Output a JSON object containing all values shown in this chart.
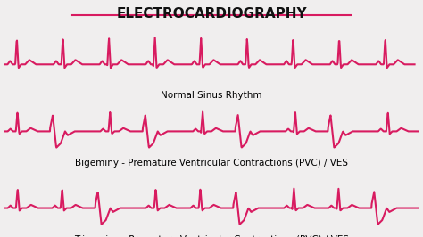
{
  "title": "ELECTROCARDIOGRAPHY",
  "title_color": "#111111",
  "bg_color": "#f0eeee",
  "ecg_color": "#d81b60",
  "line_width": 1.5,
  "label1": "Normal Sinus Rhythm",
  "label2": "Bigeminy - Premature Ventricular Contractions (PVC) / VES",
  "label3": "Trigeminy - Premature Ventricular Contractions (PVC) / VES",
  "label_fontsize": 7.5,
  "title_fontsize": 11
}
